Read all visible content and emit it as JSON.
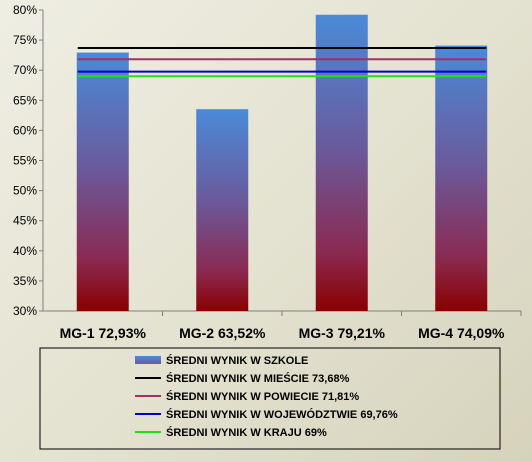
{
  "chart_data": {
    "type": "bar",
    "categories": [
      "MG-1 72,93%",
      "MG-2 63,52%",
      "MG-3 79,21%",
      "MG-4 74,09%"
    ],
    "series": [
      {
        "name": "ŚREDNI WYNIK W SZKOLE",
        "values": [
          72.93,
          63.52,
          79.21,
          74.09
        ],
        "color": "#4a8ad8"
      }
    ],
    "reference_lines": [
      {
        "name": "ŚREDNI WYNIK W MIEŚCIE 73,68%",
        "value": 73.68,
        "color": "#000000"
      },
      {
        "name": "ŚREDNI WYNIK W POWIECIE 71,81%",
        "value": 71.81,
        "color": "#a0306a"
      },
      {
        "name": "ŚREDNI WYNIK W WOJEWÓDZTWIE 69,76%",
        "value": 69.76,
        "color": "#0000cc"
      },
      {
        "name": "ŚREDNI WYNIK W KRAJU 69%",
        "value": 69,
        "color": "#22dd22"
      }
    ],
    "y_ticks": [
      "30%",
      "35%",
      "40%",
      "45%",
      "50%",
      "55%",
      "60%",
      "65%",
      "70%",
      "75%",
      "80%"
    ],
    "ylim": [
      30,
      80
    ],
    "grid": false,
    "legend_position": "bottom"
  }
}
